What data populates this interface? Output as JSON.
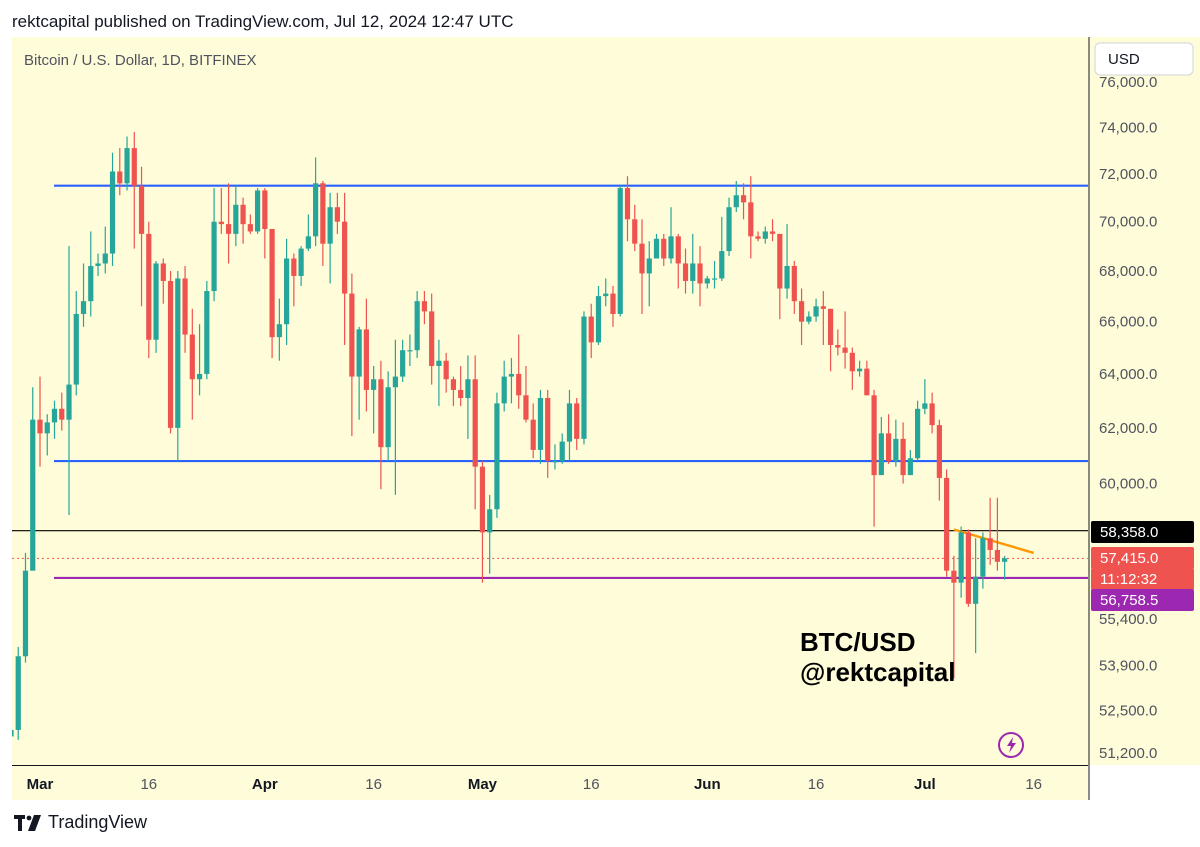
{
  "header": {
    "published_line": "rektcapital published on TradingView.com, Jul 12, 2024 12:47 UTC"
  },
  "footer": {
    "brand": "TradingView",
    "logo_icon": "tradingview-logo-icon"
  },
  "colors": {
    "chart_bg": "#fefcd9",
    "up": "#26a69a",
    "down": "#ef5350",
    "blue_line": "#2962ff",
    "purple_line": "#9c27b0",
    "orange_line": "#ff9800",
    "black_line": "#000000",
    "price_dotted": "#ef5350"
  },
  "chart_data": {
    "type": "candlestick",
    "title": "Bitcoin / U.S. Dollar, 1D, BITFINEX",
    "currency_button": "USD",
    "annotation": {
      "line1": "BTC/USD",
      "line2": "@rektcapital"
    },
    "scale": "log",
    "ylim": [
      51000,
      76800
    ],
    "y_ticks": [
      "76,000.0",
      "74,000.0",
      "72,000.0",
      "70,000.0",
      "68,000.0",
      "66,000.0",
      "64,000.0",
      "62,000.0",
      "60,000.0",
      "55,400.0",
      "53,900.0",
      "52,500.0",
      "51,200.0"
    ],
    "x_ticks": [
      "Mar",
      "16",
      "Apr",
      "16",
      "May",
      "16",
      "Jun",
      "16",
      "Jul",
      "16"
    ],
    "price_labels": [
      {
        "text": "58,358.0",
        "style": "black"
      },
      {
        "text": "57,415.0",
        "style": "red"
      },
      {
        "text": "11:12:32",
        "style": "red"
      },
      {
        "text": "56,758.5",
        "style": "purple"
      }
    ],
    "levels": [
      {
        "name": "range high",
        "value": 71500,
        "color": "blue"
      },
      {
        "name": "range low",
        "value": 60800,
        "color": "blue"
      },
      {
        "name": "support",
        "value": 56758.5,
        "color": "purple"
      },
      {
        "name": "horizontal",
        "value": 58358,
        "color": "black"
      }
    ],
    "trendline": {
      "from": {
        "day": "2024-07-05",
        "value": 58400
      },
      "to": {
        "day": "2024-07-16",
        "value": 57600
      },
      "color": "orange"
    },
    "candles": [
      {
        "d": "2024-02-26",
        "o": 51700,
        "h": 52200,
        "l": 51300,
        "c": 51900
      },
      {
        "d": "2024-02-27",
        "o": 51900,
        "h": 54500,
        "l": 51600,
        "c": 54200
      },
      {
        "d": "2024-02-28",
        "o": 54200,
        "h": 57600,
        "l": 54000,
        "c": 57000
      },
      {
        "d": "2024-02-29",
        "o": 57000,
        "h": 63500,
        "l": 57100,
        "c": 62300
      },
      {
        "d": "2024-03-01",
        "o": 62300,
        "h": 63900,
        "l": 60600,
        "c": 61800
      },
      {
        "d": "2024-03-02",
        "o": 61800,
        "h": 62500,
        "l": 61000,
        "c": 62200
      },
      {
        "d": "2024-03-03",
        "o": 62200,
        "h": 63000,
        "l": 61600,
        "c": 62700
      },
      {
        "d": "2024-03-04",
        "o": 62700,
        "h": 63300,
        "l": 61900,
        "c": 62300
      },
      {
        "d": "2024-03-05",
        "o": 62300,
        "h": 69000,
        "l": 58900,
        "c": 63600
      },
      {
        "d": "2024-03-06",
        "o": 63600,
        "h": 67200,
        "l": 63200,
        "c": 66300
      },
      {
        "d": "2024-03-07",
        "o": 66300,
        "h": 68300,
        "l": 65800,
        "c": 66800
      },
      {
        "d": "2024-03-08",
        "o": 66800,
        "h": 69600,
        "l": 66200,
        "c": 68200
      },
      {
        "d": "2024-03-09",
        "o": 68200,
        "h": 68700,
        "l": 67800,
        "c": 68300
      },
      {
        "d": "2024-03-10",
        "o": 68300,
        "h": 69800,
        "l": 67900,
        "c": 68700
      },
      {
        "d": "2024-03-11",
        "o": 68700,
        "h": 72900,
        "l": 68200,
        "c": 72100
      },
      {
        "d": "2024-03-12",
        "o": 72100,
        "h": 73100,
        "l": 71100,
        "c": 71600
      },
      {
        "d": "2024-03-13",
        "o": 71600,
        "h": 73600,
        "l": 71300,
        "c": 73100
      },
      {
        "d": "2024-03-14",
        "o": 73100,
        "h": 73800,
        "l": 68900,
        "c": 71500
      },
      {
        "d": "2024-03-15",
        "o": 71500,
        "h": 72300,
        "l": 66600,
        "c": 69500
      },
      {
        "d": "2024-03-16",
        "o": 69500,
        "h": 70000,
        "l": 64600,
        "c": 65300
      },
      {
        "d": "2024-03-17",
        "o": 65300,
        "h": 68400,
        "l": 64800,
        "c": 68300
      },
      {
        "d": "2024-03-18",
        "o": 68300,
        "h": 68500,
        "l": 66700,
        "c": 67600
      },
      {
        "d": "2024-03-19",
        "o": 67600,
        "h": 68000,
        "l": 61800,
        "c": 62000
      },
      {
        "d": "2024-03-20",
        "o": 62000,
        "h": 68000,
        "l": 60800,
        "c": 67700
      },
      {
        "d": "2024-03-21",
        "o": 67700,
        "h": 68200,
        "l": 64800,
        "c": 65500
      },
      {
        "d": "2024-03-22",
        "o": 65500,
        "h": 66500,
        "l": 62300,
        "c": 63800
      },
      {
        "d": "2024-03-23",
        "o": 63800,
        "h": 65900,
        "l": 63200,
        "c": 64000
      },
      {
        "d": "2024-03-24",
        "o": 64000,
        "h": 67600,
        "l": 63800,
        "c": 67200
      },
      {
        "d": "2024-03-25",
        "o": 67200,
        "h": 71400,
        "l": 66800,
        "c": 70000
      },
      {
        "d": "2024-03-26",
        "o": 70000,
        "h": 71400,
        "l": 69500,
        "c": 69900
      },
      {
        "d": "2024-03-27",
        "o": 69900,
        "h": 71600,
        "l": 68300,
        "c": 69500
      },
      {
        "d": "2024-03-28",
        "o": 69500,
        "h": 71500,
        "l": 69000,
        "c": 70700
      },
      {
        "d": "2024-03-29",
        "o": 70700,
        "h": 71000,
        "l": 69100,
        "c": 69900
      },
      {
        "d": "2024-03-30",
        "o": 69900,
        "h": 70300,
        "l": 69500,
        "c": 69600
      },
      {
        "d": "2024-03-31",
        "o": 69600,
        "h": 71400,
        "l": 69500,
        "c": 71300
      },
      {
        "d": "2024-04-01",
        "o": 71300,
        "h": 71400,
        "l": 68500,
        "c": 69700
      },
      {
        "d": "2024-04-02",
        "o": 69700,
        "h": 69700,
        "l": 64600,
        "c": 65400
      },
      {
        "d": "2024-04-03",
        "o": 65400,
        "h": 66900,
        "l": 64500,
        "c": 65900
      },
      {
        "d": "2024-04-04",
        "o": 65900,
        "h": 69300,
        "l": 65100,
        "c": 68500
      },
      {
        "d": "2024-04-05",
        "o": 68500,
        "h": 68700,
        "l": 66600,
        "c": 67800
      },
      {
        "d": "2024-04-06",
        "o": 67800,
        "h": 69000,
        "l": 67400,
        "c": 68900
      },
      {
        "d": "2024-04-07",
        "o": 68900,
        "h": 70300,
        "l": 68800,
        "c": 69400
      },
      {
        "d": "2024-04-08",
        "o": 69400,
        "h": 72700,
        "l": 69000,
        "c": 71600
      },
      {
        "d": "2024-04-09",
        "o": 71600,
        "h": 71700,
        "l": 68200,
        "c": 69100
      },
      {
        "d": "2024-04-10",
        "o": 69100,
        "h": 71200,
        "l": 67500,
        "c": 70600
      },
      {
        "d": "2024-04-11",
        "o": 70600,
        "h": 71200,
        "l": 69500,
        "c": 70000
      },
      {
        "d": "2024-04-12",
        "o": 70000,
        "h": 71200,
        "l": 65100,
        "c": 67100
      },
      {
        "d": "2024-04-13",
        "o": 67100,
        "h": 67900,
        "l": 61700,
        "c": 63900
      },
      {
        "d": "2024-04-14",
        "o": 63900,
        "h": 65800,
        "l": 62300,
        "c": 65700
      },
      {
        "d": "2024-04-15",
        "o": 65700,
        "h": 66900,
        "l": 62600,
        "c": 63400
      },
      {
        "d": "2024-04-16",
        "o": 63400,
        "h": 64300,
        "l": 61800,
        "c": 63800
      },
      {
        "d": "2024-04-17",
        "o": 63800,
        "h": 64500,
        "l": 59800,
        "c": 61300
      },
      {
        "d": "2024-04-18",
        "o": 61300,
        "h": 64100,
        "l": 60800,
        "c": 63500
      },
      {
        "d": "2024-04-19",
        "o": 63500,
        "h": 65300,
        "l": 59600,
        "c": 63900
      },
      {
        "d": "2024-04-20",
        "o": 63900,
        "h": 65300,
        "l": 63700,
        "c": 64900
      },
      {
        "d": "2024-04-21",
        "o": 64900,
        "h": 65500,
        "l": 64300,
        "c": 64900
      },
      {
        "d": "2024-04-22",
        "o": 64900,
        "h": 67200,
        "l": 64600,
        "c": 66800
      },
      {
        "d": "2024-04-23",
        "o": 66800,
        "h": 67200,
        "l": 65900,
        "c": 66400
      },
      {
        "d": "2024-04-24",
        "o": 66400,
        "h": 67100,
        "l": 63600,
        "c": 64300
      },
      {
        "d": "2024-04-25",
        "o": 64300,
        "h": 65300,
        "l": 62800,
        "c": 64500
      },
      {
        "d": "2024-04-26",
        "o": 64500,
        "h": 64800,
        "l": 63300,
        "c": 63800
      },
      {
        "d": "2024-04-27",
        "o": 63800,
        "h": 63900,
        "l": 62800,
        "c": 63400
      },
      {
        "d": "2024-04-28",
        "o": 63400,
        "h": 64300,
        "l": 62800,
        "c": 63100
      },
      {
        "d": "2024-04-29",
        "o": 63100,
        "h": 64700,
        "l": 61600,
        "c": 63800
      },
      {
        "d": "2024-04-30",
        "o": 63800,
        "h": 64700,
        "l": 59100,
        "c": 60600
      },
      {
        "d": "2024-05-01",
        "o": 60600,
        "h": 60800,
        "l": 56600,
        "c": 58300
      },
      {
        "d": "2024-05-02",
        "o": 58300,
        "h": 59600,
        "l": 56900,
        "c": 59100
      },
      {
        "d": "2024-05-03",
        "o": 59100,
        "h": 63300,
        "l": 58800,
        "c": 62900
      },
      {
        "d": "2024-05-04",
        "o": 62900,
        "h": 64500,
        "l": 62600,
        "c": 63900
      },
      {
        "d": "2024-05-05",
        "o": 63900,
        "h": 64600,
        "l": 62900,
        "c": 64000
      },
      {
        "d": "2024-05-06",
        "o": 64000,
        "h": 65500,
        "l": 62700,
        "c": 63200
      },
      {
        "d": "2024-05-07",
        "o": 63200,
        "h": 64300,
        "l": 62200,
        "c": 62300
      },
      {
        "d": "2024-05-08",
        "o": 62300,
        "h": 62900,
        "l": 60900,
        "c": 61200
      },
      {
        "d": "2024-05-09",
        "o": 61200,
        "h": 63400,
        "l": 60700,
        "c": 63100
      },
      {
        "d": "2024-05-10",
        "o": 63100,
        "h": 63400,
        "l": 60200,
        "c": 60800
      },
      {
        "d": "2024-05-11",
        "o": 60800,
        "h": 61400,
        "l": 60500,
        "c": 60800
      },
      {
        "d": "2024-05-12",
        "o": 60800,
        "h": 61800,
        "l": 60700,
        "c": 61500
      },
      {
        "d": "2024-05-13",
        "o": 61500,
        "h": 63400,
        "l": 60800,
        "c": 62900
      },
      {
        "d": "2024-05-14",
        "o": 62900,
        "h": 63100,
        "l": 61200,
        "c": 61600
      },
      {
        "d": "2024-05-15",
        "o": 61600,
        "h": 66400,
        "l": 61400,
        "c": 66200
      },
      {
        "d": "2024-05-16",
        "o": 66200,
        "h": 66700,
        "l": 64600,
        "c": 65200
      },
      {
        "d": "2024-05-17",
        "o": 65200,
        "h": 67400,
        "l": 65100,
        "c": 67000
      },
      {
        "d": "2024-05-18",
        "o": 67000,
        "h": 67700,
        "l": 66600,
        "c": 67100
      },
      {
        "d": "2024-05-19",
        "o": 67100,
        "h": 67400,
        "l": 65800,
        "c": 66300
      },
      {
        "d": "2024-05-20",
        "o": 66300,
        "h": 71500,
        "l": 66200,
        "c": 71400
      },
      {
        "d": "2024-05-21",
        "o": 71400,
        "h": 71900,
        "l": 69200,
        "c": 70100
      },
      {
        "d": "2024-05-22",
        "o": 70100,
        "h": 70700,
        "l": 68800,
        "c": 69100
      },
      {
        "d": "2024-05-23",
        "o": 69100,
        "h": 70100,
        "l": 66300,
        "c": 67900
      },
      {
        "d": "2024-05-24",
        "o": 67900,
        "h": 69200,
        "l": 66600,
        "c": 68500
      },
      {
        "d": "2024-05-25",
        "o": 68500,
        "h": 69500,
        "l": 68500,
        "c": 69300
      },
      {
        "d": "2024-05-26",
        "o": 69300,
        "h": 69500,
        "l": 68200,
        "c": 68500
      },
      {
        "d": "2024-05-27",
        "o": 68500,
        "h": 70600,
        "l": 68300,
        "c": 69400
      },
      {
        "d": "2024-05-28",
        "o": 69400,
        "h": 69500,
        "l": 67300,
        "c": 68300
      },
      {
        "d": "2024-05-29",
        "o": 68300,
        "h": 68900,
        "l": 67100,
        "c": 67600
      },
      {
        "d": "2024-05-30",
        "o": 67600,
        "h": 69500,
        "l": 67100,
        "c": 68300
      },
      {
        "d": "2024-05-31",
        "o": 68300,
        "h": 69000,
        "l": 66600,
        "c": 67500
      },
      {
        "d": "2024-06-01",
        "o": 67500,
        "h": 67800,
        "l": 67300,
        "c": 67700
      },
      {
        "d": "2024-06-02",
        "o": 67700,
        "h": 68400,
        "l": 67300,
        "c": 67700
      },
      {
        "d": "2024-06-03",
        "o": 67700,
        "h": 70200,
        "l": 67600,
        "c": 68800
      },
      {
        "d": "2024-06-04",
        "o": 68800,
        "h": 71000,
        "l": 68600,
        "c": 70600
      },
      {
        "d": "2024-06-05",
        "o": 70600,
        "h": 71700,
        "l": 70400,
        "c": 71100
      },
      {
        "d": "2024-06-06",
        "o": 71100,
        "h": 71600,
        "l": 70100,
        "c": 70800
      },
      {
        "d": "2024-06-07",
        "o": 70800,
        "h": 71900,
        "l": 68500,
        "c": 69400
      },
      {
        "d": "2024-06-08",
        "o": 69400,
        "h": 69600,
        "l": 69200,
        "c": 69300
      },
      {
        "d": "2024-06-09",
        "o": 69300,
        "h": 69800,
        "l": 69100,
        "c": 69600
      },
      {
        "d": "2024-06-10",
        "o": 69600,
        "h": 70100,
        "l": 69200,
        "c": 69500
      },
      {
        "d": "2024-06-11",
        "o": 69500,
        "h": 69500,
        "l": 66100,
        "c": 67300
      },
      {
        "d": "2024-06-12",
        "o": 67300,
        "h": 69900,
        "l": 66900,
        "c": 68200
      },
      {
        "d": "2024-06-13",
        "o": 68200,
        "h": 68400,
        "l": 66300,
        "c": 66800
      },
      {
        "d": "2024-06-14",
        "o": 66800,
        "h": 67300,
        "l": 65100,
        "c": 66000
      },
      {
        "d": "2024-06-15",
        "o": 66000,
        "h": 66400,
        "l": 65900,
        "c": 66200
      },
      {
        "d": "2024-06-16",
        "o": 66200,
        "h": 66900,
        "l": 66000,
        "c": 66600
      },
      {
        "d": "2024-06-17",
        "o": 66600,
        "h": 67200,
        "l": 65100,
        "c": 66500
      },
      {
        "d": "2024-06-18",
        "o": 66500,
        "h": 66500,
        "l": 64100,
        "c": 65100
      },
      {
        "d": "2024-06-19",
        "o": 65100,
        "h": 65700,
        "l": 64700,
        "c": 65000
      },
      {
        "d": "2024-06-20",
        "o": 65000,
        "h": 66400,
        "l": 64200,
        "c": 64800
      },
      {
        "d": "2024-06-21",
        "o": 64800,
        "h": 65000,
        "l": 63400,
        "c": 64100
      },
      {
        "d": "2024-06-22",
        "o": 64100,
        "h": 64500,
        "l": 63900,
        "c": 64200
      },
      {
        "d": "2024-06-23",
        "o": 64200,
        "h": 64500,
        "l": 63200,
        "c": 63200
      },
      {
        "d": "2024-06-24",
        "o": 63200,
        "h": 63400,
        "l": 58500,
        "c": 60300
      },
      {
        "d": "2024-06-25",
        "o": 60300,
        "h": 62400,
        "l": 60300,
        "c": 61800
      },
      {
        "d": "2024-06-26",
        "o": 61800,
        "h": 62500,
        "l": 60700,
        "c": 60800
      },
      {
        "d": "2024-06-27",
        "o": 60800,
        "h": 62300,
        "l": 60600,
        "c": 61600
      },
      {
        "d": "2024-06-28",
        "o": 61600,
        "h": 62200,
        "l": 60000,
        "c": 60300
      },
      {
        "d": "2024-06-29",
        "o": 60300,
        "h": 61200,
        "l": 60300,
        "c": 60900
      },
      {
        "d": "2024-06-30",
        "o": 60900,
        "h": 63000,
        "l": 60800,
        "c": 62700
      },
      {
        "d": "2024-07-01",
        "o": 62700,
        "h": 63800,
        "l": 62500,
        "c": 62900
      },
      {
        "d": "2024-07-02",
        "o": 62900,
        "h": 63300,
        "l": 61800,
        "c": 62100
      },
      {
        "d": "2024-07-03",
        "o": 62100,
        "h": 62300,
        "l": 59400,
        "c": 60200
      },
      {
        "d": "2024-07-04",
        "o": 60200,
        "h": 60500,
        "l": 56800,
        "c": 57000
      },
      {
        "d": "2024-07-05",
        "o": 57000,
        "h": 57500,
        "l": 53500,
        "c": 56600
      },
      {
        "d": "2024-07-06",
        "o": 56600,
        "h": 58500,
        "l": 56100,
        "c": 58300
      },
      {
        "d": "2024-07-07",
        "o": 58300,
        "h": 58400,
        "l": 55800,
        "c": 55900
      },
      {
        "d": "2024-07-08",
        "o": 55900,
        "h": 58100,
        "l": 54300,
        "c": 56800
      },
      {
        "d": "2024-07-09",
        "o": 56800,
        "h": 58300,
        "l": 56400,
        "c": 58100
      },
      {
        "d": "2024-07-10",
        "o": 58100,
        "h": 59500,
        "l": 57200,
        "c": 57700
      },
      {
        "d": "2024-07-11",
        "o": 57700,
        "h": 59500,
        "l": 57000,
        "c": 57300
      },
      {
        "d": "2024-07-12",
        "o": 57300,
        "h": 57500,
        "l": 56700,
        "c": 57415
      }
    ]
  }
}
